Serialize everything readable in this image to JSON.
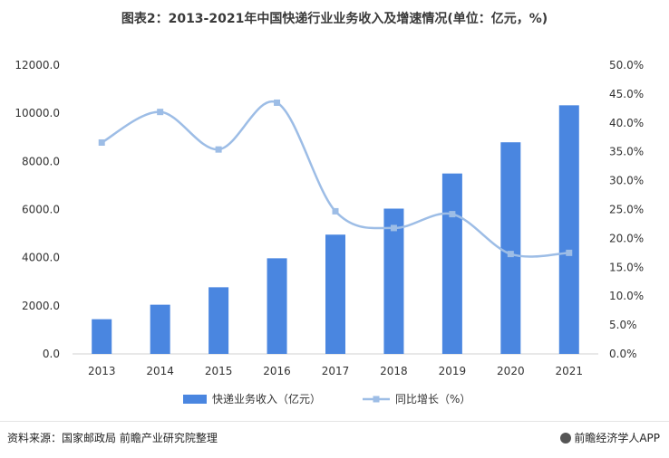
{
  "chart_data": {
    "type": "bar+line",
    "title": "图表2：2013-2021年中国快递行业业务收入及增速情况(单位：亿元，%)",
    "categories": [
      "2013",
      "2014",
      "2015",
      "2016",
      "2017",
      "2018",
      "2019",
      "2020",
      "2021"
    ],
    "series": [
      {
        "name": "快递业务收入（亿元）",
        "type": "bar",
        "axis": "left",
        "values": [
          1442,
          2045,
          2770,
          3974,
          4957,
          6038,
          7498,
          8795,
          10332
        ]
      },
      {
        "name": "同比增长（%）",
        "type": "line",
        "axis": "right",
        "values": [
          36.6,
          41.9,
          35.4,
          43.5,
          24.7,
          21.8,
          24.2,
          17.3,
          17.5
        ]
      }
    ],
    "left_axis": {
      "ylim": [
        0,
        12000
      ],
      "ticks": [
        "0.0",
        "2000.0",
        "4000.0",
        "6000.0",
        "8000.0",
        "10000.0",
        "12000.0"
      ]
    },
    "right_axis": {
      "ylim": [
        0,
        50
      ],
      "ticks": [
        "0.0%",
        "5.0%",
        "10.0%",
        "15.0%",
        "20.0%",
        "25.0%",
        "30.0%",
        "35.0%",
        "40.0%",
        "45.0%",
        "50.0%"
      ]
    },
    "legend_position": "bottom-center",
    "grid": false,
    "colors": {
      "bar": "#4a86e0",
      "line": "#9dbde6",
      "marker": "#9dbde6"
    }
  },
  "footer": {
    "source": "资料来源：国家邮政局 前瞻产业研究院整理",
    "brand": "前瞻经济学人APP"
  }
}
